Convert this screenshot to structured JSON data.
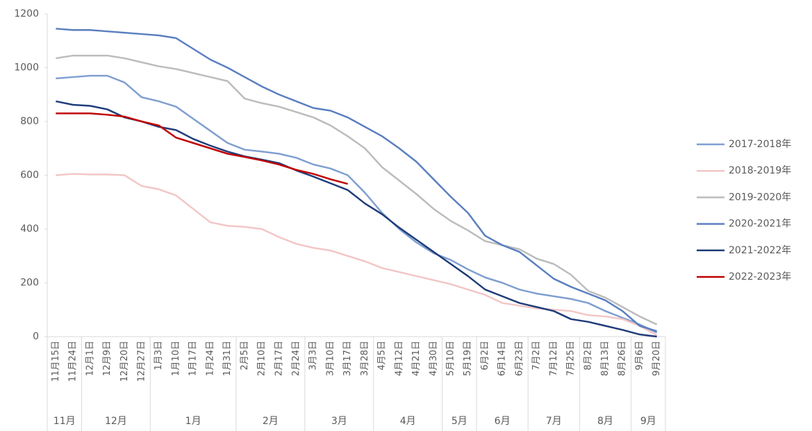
{
  "chart_data": {
    "type": "line",
    "categories": [
      "11月15日",
      "11月24日",
      "12月1日",
      "12月9日",
      "12月20日",
      "12月27日",
      "1月3日",
      "1月10日",
      "1月17日",
      "1月24日",
      "1月31日",
      "2月5日",
      "2月10日",
      "2月17日",
      "2月24日",
      "3月3日",
      "3月10日",
      "3月17日",
      "3月28日",
      "4月5日",
      "4月12日",
      "4月21日",
      "4月30日",
      "5月10日",
      "5月19日",
      "6月2日",
      "6月14日",
      "6月23日",
      "7月2日",
      "7月12日",
      "7月25日",
      "8月2日",
      "8月13日",
      "8月26日",
      "9月6日",
      "9月20日"
    ],
    "category_groups": [
      "11月",
      "12月",
      "1月",
      "2月",
      "3月",
      "4月",
      "5月",
      "6月",
      "7月",
      "8月",
      "9月"
    ],
    "ylim": [
      0,
      1200
    ],
    "yticks": [
      0,
      200,
      400,
      600,
      800,
      1000,
      1200
    ],
    "legend": "right",
    "series": [
      {
        "name": "2017-2018年",
        "color": "#7f9fd0",
        "values": [
          960,
          965,
          970,
          970,
          945,
          890,
          875,
          855,
          810,
          765,
          720,
          695,
          688,
          680,
          665,
          640,
          625,
          600,
          535,
          460,
          400,
          350,
          310,
          285,
          250,
          220,
          200,
          175,
          160,
          150,
          140,
          125,
          95,
          70,
          45,
          15
        ]
      },
      {
        "name": "2018-2019年",
        "color": "#f2c6c6",
        "values": [
          600,
          605,
          603,
          603,
          600,
          560,
          548,
          525,
          475,
          425,
          412,
          408,
          400,
          370,
          345,
          330,
          320,
          300,
          280,
          255,
          240,
          225,
          210,
          195,
          175,
          155,
          125,
          115,
          105,
          100,
          95,
          80,
          75,
          65,
          40,
          5
        ]
      },
      {
        "name": "2019-2020年",
        "color": "#bcbcbc",
        "values": [
          1035,
          1045,
          1045,
          1045,
          1035,
          1020,
          1005,
          995,
          980,
          965,
          950,
          885,
          868,
          855,
          835,
          815,
          785,
          745,
          700,
          630,
          580,
          530,
          475,
          430,
          395,
          355,
          340,
          325,
          290,
          270,
          230,
          170,
          145,
          110,
          75,
          45
        ]
      },
      {
        "name": "2020-2021年",
        "color": "#5b7fc0",
        "values": [
          1145,
          1140,
          1140,
          1135,
          1130,
          1125,
          1120,
          1110,
          1070,
          1030,
          1000,
          965,
          930,
          900,
          875,
          850,
          840,
          815,
          780,
          745,
          700,
          650,
          585,
          520,
          460,
          375,
          340,
          315,
          265,
          215,
          185,
          160,
          135,
          95,
          40,
          20
        ]
      },
      {
        "name": "2021-2022年",
        "color": "#1f3c7a",
        "values": [
          875,
          862,
          858,
          845,
          815,
          800,
          780,
          768,
          735,
          710,
          688,
          670,
          658,
          645,
          618,
          595,
          570,
          545,
          495,
          455,
          405,
          360,
          315,
          270,
          225,
          175,
          150,
          125,
          110,
          95,
          65,
          55,
          40,
          25,
          8,
          0
        ]
      },
      {
        "name": "2022-2023年",
        "color": "#c00000",
        "values": [
          830,
          830,
          830,
          825,
          818,
          800,
          785,
          740,
          720,
          700,
          680,
          668,
          655,
          640,
          620,
          605,
          585,
          568,
          null,
          null,
          null,
          null,
          null,
          null,
          null,
          null,
          null,
          null,
          null,
          null,
          null,
          null,
          null,
          null,
          null,
          null
        ]
      }
    ]
  }
}
